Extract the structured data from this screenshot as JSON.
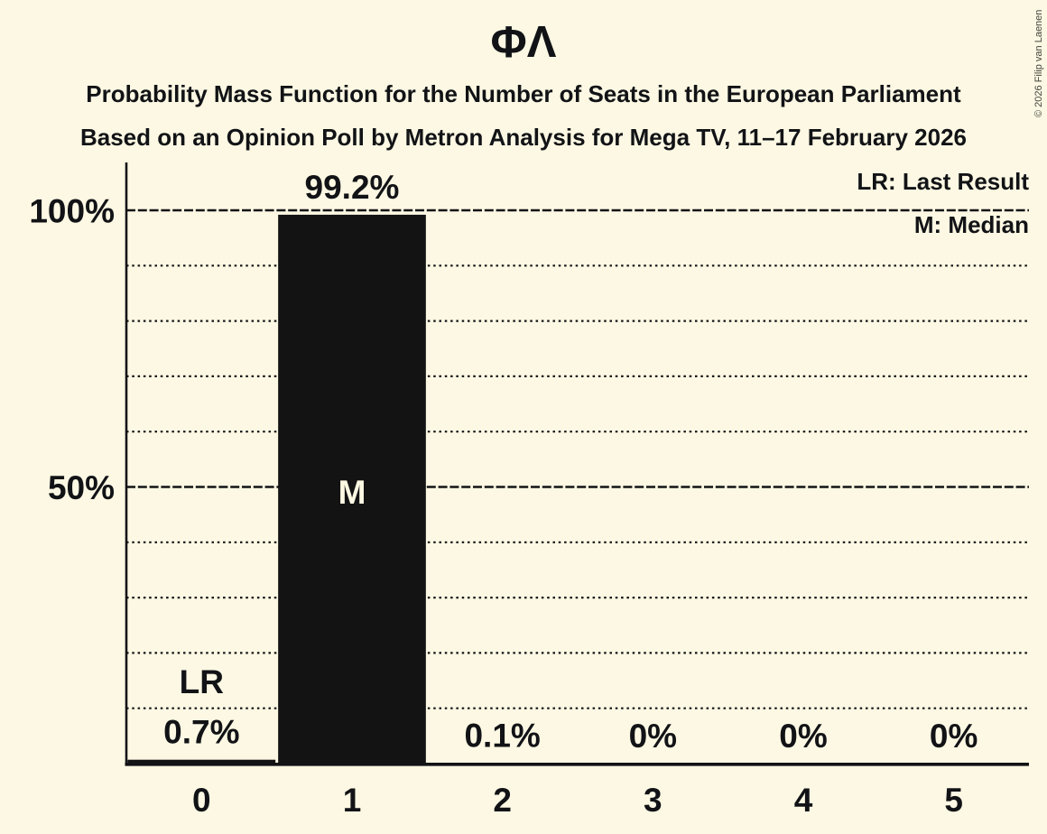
{
  "copyright": "© 2026 Filip van Laenen",
  "legend": {
    "lr": "LR: Last Result",
    "m": "M: Median"
  },
  "colors": {
    "background": "#FCF8E3",
    "ink": "#121316",
    "bar": "#131314"
  },
  "chart_data": {
    "type": "bar",
    "title": "ΦΛ",
    "subtitle": "Probability Mass Function for the Number of Seats in the European Parliament",
    "source_line": "Based on an Opinion Poll by Metron Analysis for Mega TV, 11–17 February 2026",
    "categories": [
      "0",
      "1",
      "2",
      "3",
      "4",
      "5"
    ],
    "values": [
      0.7,
      99.2,
      0.1,
      0,
      0,
      0
    ],
    "value_labels": [
      "0.7%",
      "99.2%",
      "0.1%",
      "0%",
      "0%",
      "0%"
    ],
    "ylim": [
      0,
      100
    ],
    "y_ticks": [
      {
        "pct": 100,
        "label": "100%"
      },
      {
        "pct": 50,
        "label": "50%"
      }
    ],
    "gridlines_dotted_pct": [
      10,
      20,
      30,
      40,
      60,
      70,
      80,
      90
    ],
    "gridlines_dashed_pct": [
      50,
      100
    ],
    "median": {
      "category": "1",
      "label": "M"
    },
    "last_result": {
      "category": "0",
      "label": "LR"
    },
    "legend_position": "top-right",
    "grid": true
  }
}
